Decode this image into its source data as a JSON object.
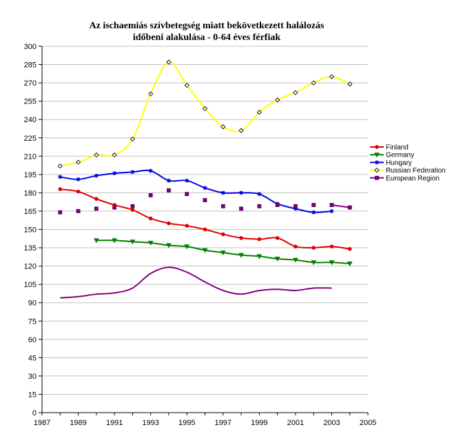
{
  "chart_data": {
    "type": "line",
    "title": "Az ischaemiás szívbetegség miatt bekövetkezett halálozás",
    "subtitle": "időbeni alakulása  -  0-64 éves férfiak",
    "xlim": [
      1987,
      2005
    ],
    "ylim": [
      0,
      300
    ],
    "x_ticks": [
      1987,
      1989,
      1991,
      1993,
      1995,
      1997,
      1999,
      2001,
      2003,
      2005
    ],
    "y_ticks": [
      0,
      15,
      30,
      45,
      60,
      75,
      90,
      105,
      120,
      135,
      150,
      165,
      180,
      195,
      210,
      225,
      240,
      255,
      270,
      285,
      300
    ],
    "legend_position": "right",
    "series": [
      {
        "name": "Finland",
        "color": "#e00000",
        "marker": "circle",
        "x": [
          1988,
          1989,
          1990,
          1991,
          1992,
          1993,
          1994,
          1995,
          1996,
          1997,
          1998,
          1999,
          2000,
          2001,
          2002,
          2003,
          2004
        ],
        "values": [
          183,
          181,
          175,
          170,
          166,
          159,
          155,
          153,
          150,
          146,
          143,
          142,
          143,
          136,
          135,
          136,
          134
        ]
      },
      {
        "name": "Germany",
        "color": "#008000",
        "marker": "triangle-down",
        "x": [
          1990,
          1991,
          1992,
          1993,
          1994,
          1995,
          1996,
          1997,
          1998,
          1999,
          2000,
          2001,
          2002,
          2003,
          2004
        ],
        "values": [
          141,
          141,
          140,
          139,
          137,
          136,
          133,
          131,
          129,
          128,
          126,
          125,
          123,
          123,
          122
        ]
      },
      {
        "name": "Hungary",
        "color": "#0000e0",
        "marker": "star",
        "x": [
          1988,
          1989,
          1990,
          1991,
          1992,
          1993,
          1994,
          1995,
          1996,
          1997,
          1998,
          1999,
          2000,
          2001,
          2002,
          2003
        ],
        "values": [
          193,
          191,
          194,
          196,
          197,
          198,
          190,
          190,
          184,
          180,
          180,
          179,
          171,
          167,
          164,
          165
        ]
      },
      {
        "name": "Russian Federation",
        "color": "#ffff00",
        "marker": "diamond",
        "x": [
          1988,
          1989,
          1990,
          1991,
          1992,
          1993,
          1994,
          1995,
          1996,
          1997,
          1998,
          1999,
          2000,
          2001,
          2002,
          2003,
          2004
        ],
        "values": [
          202,
          205,
          211,
          211,
          224,
          261,
          287,
          268,
          249,
          234,
          231,
          246,
          256,
          262,
          270,
          275,
          269
        ]
      },
      {
        "name": "European Region",
        "color": "#800080",
        "marker": "square",
        "line_x": [
          1988,
          1989,
          1990,
          1991,
          1992,
          1993,
          1994,
          1995,
          1996,
          1997,
          1998,
          1999,
          2000,
          2001,
          2002,
          2003
        ],
        "line_values": [
          94,
          95,
          97,
          98,
          102,
          114,
          119,
          115,
          107,
          100,
          97,
          100,
          101,
          100,
          102,
          102
        ],
        "marker_x": [
          1988,
          1989,
          1990,
          1991,
          1992,
          1993,
          1994,
          1995,
          1996,
          1997,
          1998,
          1999,
          2000,
          2001,
          2002,
          2003,
          2004
        ],
        "marker_values": [
          164,
          165,
          167,
          168,
          169,
          178,
          182,
          179,
          174,
          169,
          167,
          169,
          170,
          169,
          170,
          170,
          168
        ],
        "marker_line": [
          2003,
          2004
        ]
      }
    ]
  }
}
